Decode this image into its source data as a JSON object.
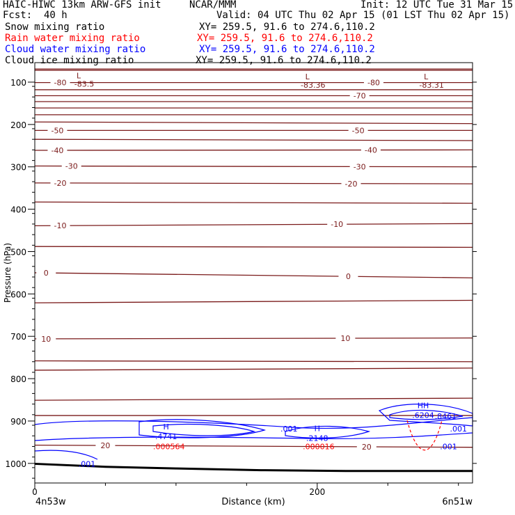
{
  "header": {
    "model": "HAIC-HIWC 13km ARW-GFS init",
    "org": "NCAR/MMM",
    "init": "Init: 12 UTC Tue 31 Mar 15",
    "fcst_label": "Fcst:",
    "fcst_value": "40 h",
    "valid": "Valid: 04 UTC Thu 02 Apr 15 (01 LST Thu 02 Apr 15)"
  },
  "fields": [
    {
      "name": "Snow mixing ratio",
      "xy": "XY= 259.5, 91.6 to 274.6,110.2",
      "color": "#000000"
    },
    {
      "name": "Rain water mixing ratio",
      "xy": "XY= 259.5, 91.6 to 274.6,110.2",
      "color": "#ff0000"
    },
    {
      "name": "Cloud water mixing ratio",
      "xy": "XY= 259.5, 91.6 to 274.6,110.2",
      "color": "#0000ff"
    },
    {
      "name": "Cloud ice mixing ratio",
      "xy": "XY= 259.5, 91.6 to 274.6,110.2",
      "color": "#000000"
    }
  ],
  "axes": {
    "ylabel": "Pressure (hPa)",
    "xlabel": "Distance (km)",
    "left_endpoint": "4n53w",
    "right_endpoint": "6n51w"
  },
  "colors": {
    "temperature": "#7a1a1a",
    "cloud_water": "#0000ff",
    "rain_water": "#ff0000",
    "terrain": "#000000"
  },
  "chart_data": {
    "type": "line",
    "description_of_axes": "cross-section, y = pressure (hPa, decreasing upward), x = distance (km)",
    "xlim": [
      0,
      310
    ],
    "ylim": [
      1050,
      65
    ],
    "xticks": [
      0,
      200
    ],
    "yticks": [
      100,
      200,
      300,
      400,
      500,
      600,
      700,
      800,
      900,
      1000
    ],
    "temperature_isotherms": [
      {
        "p0": 69,
        "p1": 69,
        "label": "",
        "label_x": null
      },
      {
        "p0": 72,
        "p1": 72,
        "label": "",
        "label_x": null
      },
      {
        "p0": 101,
        "p1": 101,
        "label": "-80",
        "label_x": [
          18,
          240
        ]
      },
      {
        "p0": 118,
        "p1": 118,
        "label": "",
        "label_x": null
      },
      {
        "p0": 132,
        "p1": 132,
        "label": "-70",
        "label_x": [
          230
        ]
      },
      {
        "p0": 146,
        "p1": 146,
        "label": "",
        "label_x": null
      },
      {
        "p0": 161,
        "p1": 161,
        "label": "",
        "label_x": null
      },
      {
        "p0": 177,
        "p1": 177,
        "label": "",
        "label_x": null
      },
      {
        "p0": 194,
        "p1": 198,
        "label": "",
        "label_x": null
      },
      {
        "p0": 214,
        "p1": 214,
        "label": "-50",
        "label_x": [
          16,
          229
        ]
      },
      {
        "p0": 235,
        "p1": 238,
        "label": "",
        "label_x": null
      },
      {
        "p0": 261,
        "p1": 260,
        "label": "-40",
        "label_x": [
          16,
          238
        ]
      },
      {
        "p0": 298,
        "p1": 300,
        "label": "-30",
        "label_x": [
          26,
          230
        ]
      },
      {
        "p0": 338,
        "p1": 340,
        "label": "-20",
        "label_x": [
          18,
          224
        ]
      },
      {
        "p0": 383,
        "p1": 386,
        "label": "",
        "label_x": null
      },
      {
        "p0": 439,
        "p1": 434,
        "label": "-10",
        "label_x": [
          18,
          214
        ]
      },
      {
        "p0": 488,
        "p1": 490,
        "label": "",
        "label_x": null
      },
      {
        "p0": 550,
        "p1": 562,
        "label": "0",
        "label_x": [
          8,
          222
        ]
      },
      {
        "p0": 621,
        "p1": 615,
        "label": "",
        "label_x": null
      },
      {
        "p0": 706,
        "p1": 704,
        "label": "10",
        "label_x": [
          8,
          220
        ]
      },
      {
        "p0": 758,
        "p1": 760,
        "label": "",
        "label_x": null
      },
      {
        "p0": 780,
        "p1": 775,
        "label": "",
        "label_x": null
      },
      {
        "p0": 851,
        "p1": 846,
        "label": "",
        "label_x": null
      },
      {
        "p0": 887,
        "p1": 887,
        "label": "",
        "label_x": null
      },
      {
        "p0": 957,
        "p1": 962,
        "label": "20",
        "label_x": [
          50,
          235
        ]
      }
    ],
    "extrema_labels": [
      {
        "symbol": "L",
        "value": "-83.5",
        "x": 35,
        "p": 78
      },
      {
        "symbol": "L",
        "value": "-83.36",
        "x": 197,
        "p": 80
      },
      {
        "symbol": "L",
        "value": "-83.31",
        "x": 281,
        "p": 80
      }
    ],
    "cloud_water_maxima": [
      {
        "symbol": "H",
        "value": ".4741",
        "x": 93,
        "p": 933
      },
      {
        "symbol": "H",
        "value": ".2148",
        "x": 200,
        "p": 937
      },
      {
        "symbol": "HH",
        "value": ".6204",
        "x": 275,
        "p": 883
      },
      {
        "symbol": "",
        "value": ".8461",
        "x": 291,
        "p": 885
      }
    ],
    "cloud_water_contour_labels": [
      {
        "value": ".001",
        "x": 180,
        "p": 918
      },
      {
        "value": ".001",
        "x": 37,
        "p": 1001
      },
      {
        "value": ".001",
        "x": 300,
        "p": 918
      },
      {
        "value": ".001",
        "x": 293,
        "p": 960
      }
    ],
    "rain_water_maxima": [
      {
        "value": ".000564",
        "x": 95,
        "p": 960
      },
      {
        "value": ".000016",
        "x": 201,
        "p": 960
      }
    ],
    "terrain_pressure": [
      {
        "x": 0,
        "p": 1001
      },
      {
        "x": 50,
        "p": 1008
      },
      {
        "x": 100,
        "p": 1012
      },
      {
        "x": 160,
        "p": 1016
      },
      {
        "x": 220,
        "p": 1018
      },
      {
        "x": 310,
        "p": 1018
      }
    ]
  }
}
